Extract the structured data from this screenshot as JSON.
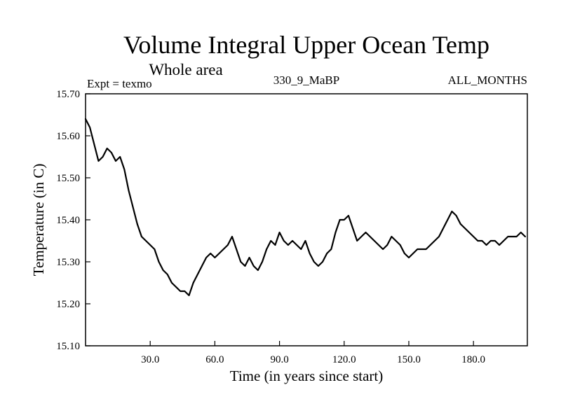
{
  "chart_data": {
    "type": "line",
    "title": "Volume Integral Upper Ocean Temp",
    "subtitle": "Whole area",
    "experiment": "Expt = texmo",
    "run_label": "330_9_MaBP",
    "months_label": "ALL_MONTHS",
    "xlabel": "Time (in years since start)",
    "ylabel": "Temperature (in C)",
    "xlim": [
      0,
      205
    ],
    "ylim": [
      15.1,
      15.7
    ],
    "x_ticks": [
      30,
      60,
      90,
      120,
      150,
      180
    ],
    "x_tick_labels": [
      "30.0",
      "60.0",
      "90.0",
      "120.0",
      "150.0",
      "180.0"
    ],
    "y_ticks": [
      15.1,
      15.2,
      15.3,
      15.4,
      15.5,
      15.6,
      15.7
    ],
    "y_tick_labels": [
      "15.10",
      "15.20",
      "15.30",
      "15.40",
      "15.50",
      "15.60",
      "15.70"
    ],
    "series": [
      {
        "name": "Volume Integral Upper Ocean Temp",
        "x": [
          0,
          2,
          4,
          6,
          8,
          10,
          12,
          14,
          16,
          18,
          20,
          22,
          24,
          26,
          28,
          30,
          32,
          34,
          36,
          38,
          40,
          42,
          44,
          46,
          48,
          50,
          52,
          54,
          56,
          58,
          60,
          62,
          64,
          66,
          68,
          70,
          72,
          74,
          76,
          78,
          80,
          82,
          84,
          86,
          88,
          90,
          92,
          94,
          96,
          98,
          100,
          102,
          104,
          106,
          108,
          110,
          112,
          114,
          116,
          118,
          120,
          122,
          124,
          126,
          128,
          130,
          132,
          134,
          136,
          138,
          140,
          142,
          144,
          146,
          148,
          150,
          152,
          154,
          156,
          158,
          160,
          162,
          164,
          166,
          168,
          170,
          172,
          174,
          176,
          178,
          180,
          182,
          184,
          186,
          188,
          190,
          192,
          194,
          196,
          198,
          200,
          202,
          204
        ],
        "values": [
          15.64,
          15.62,
          15.58,
          15.54,
          15.55,
          15.57,
          15.56,
          15.54,
          15.55,
          15.52,
          15.47,
          15.43,
          15.39,
          15.36,
          15.35,
          15.34,
          15.33,
          15.3,
          15.28,
          15.27,
          15.25,
          15.24,
          15.23,
          15.23,
          15.22,
          15.25,
          15.27,
          15.29,
          15.31,
          15.32,
          15.31,
          15.32,
          15.33,
          15.34,
          15.36,
          15.33,
          15.3,
          15.29,
          15.31,
          15.29,
          15.28,
          15.3,
          15.33,
          15.35,
          15.34,
          15.37,
          15.35,
          15.34,
          15.35,
          15.34,
          15.33,
          15.35,
          15.32,
          15.3,
          15.29,
          15.3,
          15.32,
          15.33,
          15.37,
          15.4,
          15.4,
          15.41,
          15.38,
          15.35,
          15.36,
          15.37,
          15.36,
          15.35,
          15.34,
          15.33,
          15.34,
          15.36,
          15.35,
          15.34,
          15.32,
          15.31,
          15.32,
          15.33,
          15.33,
          15.33,
          15.34,
          15.35,
          15.36,
          15.38,
          15.4,
          15.42,
          15.41,
          15.39,
          15.38,
          15.37,
          15.36,
          15.35,
          15.35,
          15.34,
          15.35,
          15.35,
          15.34,
          15.35,
          15.36,
          15.36,
          15.36,
          15.37,
          15.36
        ]
      }
    ]
  }
}
